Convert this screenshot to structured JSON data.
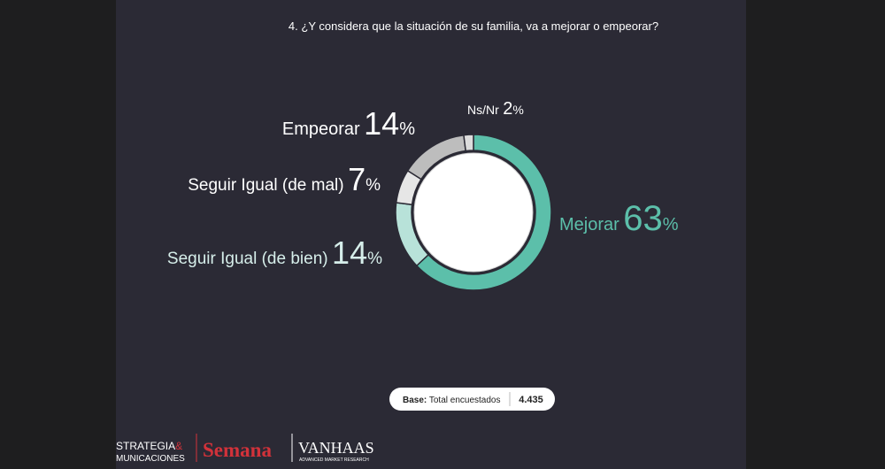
{
  "chart_data": {
    "type": "donut",
    "title": "4. ¿Y considera que la situación de su familia, va a mejorar o empeorar?",
    "categories": [
      "Mejorar",
      "Seguir Igual (de bien)",
      "Seguir Igual (de mal)",
      "Empeorar",
      "Ns/Nr"
    ],
    "values": [
      63,
      14,
      7,
      14,
      2
    ],
    "unit": "%",
    "colors": [
      "#5cbfaa",
      "#b8e2d9",
      "#e6e6e6",
      "#bdbdbd",
      "#dcdcdc"
    ],
    "base": {
      "label": "Base:",
      "text": "Total encuestados",
      "value": "4.435"
    }
  },
  "logos": {
    "first": [
      "STRATEGIA",
      "&",
      "MUNICACIONES"
    ],
    "second": "Semana",
    "third": [
      "VANHAAS",
      "ADVANCED MARKET RESEARCH"
    ]
  }
}
